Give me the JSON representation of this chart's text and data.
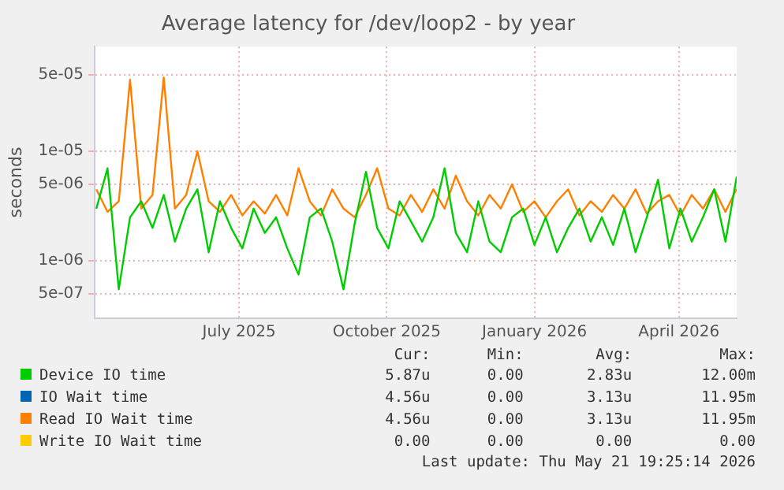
{
  "chart_data": {
    "type": "line",
    "title": "Average latency for /dev/loop2 - by year",
    "ylabel": "seconds",
    "log": "y",
    "grid": true,
    "legend": "bottom",
    "marker": "none",
    "line_style": "solid",
    "x": [
      "2025-04-03",
      "2025-04-10",
      "2025-04-17",
      "2025-04-24",
      "2025-05-01",
      "2025-05-08",
      "2025-05-15",
      "2025-05-22",
      "2025-05-29",
      "2025-06-05",
      "2025-06-12",
      "2025-06-19",
      "2025-06-26",
      "2025-07-03",
      "2025-07-10",
      "2025-07-17",
      "2025-07-24",
      "2025-07-31",
      "2025-08-07",
      "2025-08-14",
      "2025-08-21",
      "2025-08-28",
      "2025-09-04",
      "2025-09-11",
      "2025-09-18",
      "2025-09-25",
      "2025-10-02",
      "2025-10-09",
      "2025-10-16",
      "2025-10-23",
      "2025-10-30",
      "2025-11-06",
      "2025-11-13",
      "2025-11-20",
      "2025-11-27",
      "2025-12-04",
      "2025-12-11",
      "2025-12-18",
      "2025-12-25",
      "2026-01-01",
      "2026-01-08",
      "2026-01-15",
      "2026-01-22",
      "2026-01-29",
      "2026-02-05",
      "2026-02-12",
      "2026-02-19",
      "2026-02-26",
      "2026-03-05",
      "2026-03-12",
      "2026-03-19",
      "2026-03-26",
      "2026-04-02",
      "2026-04-09",
      "2026-04-16",
      "2026-04-23",
      "2026-04-30",
      "2026-05-07"
    ],
    "xlim": [
      "2025-04-02",
      "2026-05-07"
    ],
    "xticks": [
      {
        "value": "2025-07-01",
        "label": "July 2025"
      },
      {
        "value": "2025-10-01",
        "label": "October 2025"
      },
      {
        "value": "2026-01-01",
        "label": "January 2026"
      },
      {
        "value": "2026-04-01",
        "label": "April 2026"
      }
    ],
    "ylim": [
      3e-07,
      9e-05
    ],
    "yticks": [
      {
        "value": 5e-07,
        "label": "5e-07"
      },
      {
        "value": 1e-06,
        "label": "1e-06"
      },
      {
        "value": 5e-06,
        "label": "5e-06"
      },
      {
        "value": 1e-05,
        "label": "1e-05"
      },
      {
        "value": 5e-05,
        "label": "5e-05"
      }
    ],
    "series": [
      {
        "name": "Device IO time",
        "color": "#00cc00",
        "values": [
          3e-06,
          7e-06,
          5.5e-07,
          2.5e-06,
          3.5e-06,
          2e-06,
          4e-06,
          1.5e-06,
          3e-06,
          4.5e-06,
          1.2e-06,
          3.5e-06,
          2e-06,
          1.3e-06,
          3e-06,
          1.8e-06,
          2.5e-06,
          1.3e-06,
          7.5e-07,
          2.5e-06,
          3e-06,
          1.5e-06,
          5.5e-07,
          2.2e-06,
          6.5e-06,
          2e-06,
          1.3e-06,
          3.5e-06,
          2.3e-06,
          1.5e-06,
          2.5e-06,
          7e-06,
          1.8e-06,
          1.2e-06,
          3.5e-06,
          1.5e-06,
          1.2e-06,
          2.5e-06,
          3e-06,
          1.4e-06,
          2.5e-06,
          1.2e-06,
          2e-06,
          3e-06,
          1.5e-06,
          2.5e-06,
          1.4e-06,
          3e-06,
          1.2e-06,
          2.5e-06,
          5.5e-06,
          1.3e-06,
          3e-06,
          1.5e-06,
          2.5e-06,
          4.5e-06,
          1.5e-06,
          5.87e-06
        ]
      },
      {
        "name": "IO Wait time",
        "color": "#0066b3",
        "values": [
          null,
          null,
          null,
          null,
          null,
          null,
          null,
          null,
          null,
          null,
          null,
          null,
          null,
          null,
          null,
          null,
          null,
          null,
          null,
          null,
          null,
          null,
          null,
          null,
          null,
          null,
          null,
          null,
          null,
          null,
          null,
          null,
          null,
          null,
          null,
          null,
          null,
          null,
          null,
          null,
          null,
          null,
          null,
          null,
          null,
          null,
          null,
          null,
          null,
          null,
          null,
          null,
          null,
          null,
          null,
          null,
          null,
          null
        ]
      },
      {
        "name": "Read IO Wait time",
        "color": "#ff8000",
        "values": [
          4.5e-06,
          2.8e-06,
          3.5e-06,
          4.5e-05,
          3e-06,
          4e-06,
          4.7e-05,
          3e-06,
          4e-06,
          1e-05,
          3.5e-06,
          2.8e-06,
          4e-06,
          2.6e-06,
          3.5e-06,
          2.7e-06,
          4e-06,
          2.6e-06,
          7e-06,
          3.5e-06,
          2.6e-06,
          4.5e-06,
          3e-06,
          2.5e-06,
          4e-06,
          7e-06,
          3e-06,
          2.6e-06,
          4e-06,
          2.8e-06,
          4.5e-06,
          3e-06,
          6e-06,
          3.5e-06,
          2.6e-06,
          4e-06,
          3e-06,
          5e-06,
          2.8e-06,
          3.5e-06,
          2.5e-06,
          3.5e-06,
          4.5e-06,
          2.6e-06,
          3.5e-06,
          2.8e-06,
          4e-06,
          3e-06,
          4.5e-06,
          2.7e-06,
          3.5e-06,
          4e-06,
          2.6e-06,
          4e-06,
          3e-06,
          4.5e-06,
          2.8e-06,
          4.56e-06
        ]
      },
      {
        "name": "Write IO Wait time",
        "color": "#ffcc00",
        "values": [
          null,
          null,
          null,
          null,
          null,
          null,
          null,
          null,
          null,
          null,
          null,
          null,
          null,
          null,
          null,
          null,
          null,
          null,
          null,
          null,
          null,
          null,
          null,
          null,
          null,
          null,
          null,
          null,
          null,
          null,
          null,
          null,
          null,
          null,
          null,
          null,
          null,
          null,
          null,
          null,
          null,
          null,
          null,
          null,
          null,
          null,
          null,
          null,
          null,
          null,
          null,
          null,
          null,
          null,
          null,
          null,
          null,
          null
        ]
      }
    ],
    "annotations": [
      "Cur:",
      "Min:",
      "Avg:",
      "Max:",
      "5.87u",
      "0.00",
      "2.83u",
      "12.00m",
      "4.56u",
      "0.00",
      "3.13u",
      "11.95m",
      "4.56u",
      "0.00",
      "3.13u",
      "11.95m",
      "0.00",
      "0.00",
      "0.00",
      "0.00",
      "Last update: Thu May 21 19:25:14 2026"
    ]
  }
}
